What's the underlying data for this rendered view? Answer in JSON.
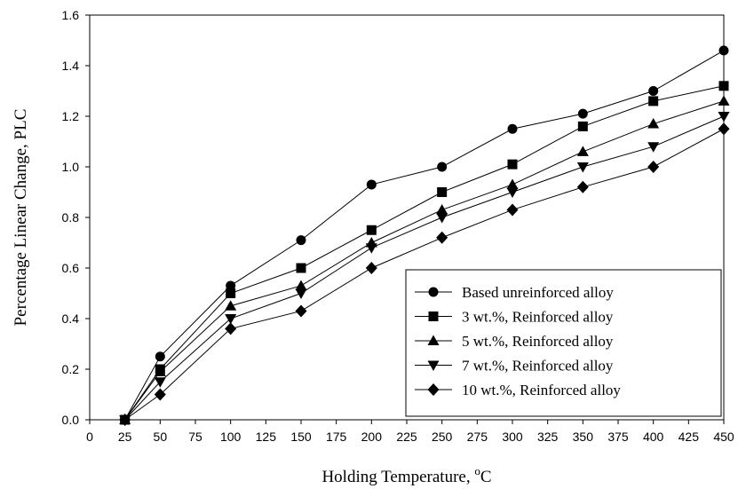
{
  "chart_data": {
    "type": "line",
    "xlabel": "Holding Temperature, ",
    "xlabel_unit": "C",
    "xlabel_degree": "o",
    "ylabel": "Percentage Linear Change, PLC",
    "xlim": [
      0,
      450
    ],
    "ylim": [
      0,
      1.6
    ],
    "x_ticks": [
      0,
      25,
      50,
      75,
      100,
      125,
      150,
      175,
      200,
      225,
      250,
      275,
      300,
      325,
      350,
      375,
      400,
      425,
      450
    ],
    "y_ticks": [
      "0.0",
      "0.2",
      "0.4",
      "0.6",
      "0.8",
      "1.0",
      "1.2",
      "1.4",
      "1.6"
    ],
    "grid": false,
    "legend_position": "bottom-right",
    "x": [
      25,
      50,
      100,
      150,
      200,
      250,
      300,
      350,
      400,
      450
    ],
    "series": [
      {
        "name": "Based unreinforced alloy",
        "marker": "circle",
        "values": [
          0,
          0.25,
          0.53,
          0.71,
          0.93,
          1.0,
          1.15,
          1.21,
          1.3,
          1.46
        ]
      },
      {
        "name": "3 wt.%, Reinforced alloy",
        "marker": "square",
        "values": [
          0,
          0.2,
          0.5,
          0.6,
          0.75,
          0.9,
          1.01,
          1.16,
          1.26,
          1.32
        ]
      },
      {
        "name": "5 wt.%, Reinforced alloy",
        "marker": "triangle-up",
        "values": [
          0,
          0.19,
          0.45,
          0.53,
          0.7,
          0.83,
          0.93,
          1.06,
          1.17,
          1.26
        ]
      },
      {
        "name": "7 wt.%, Reinforced alloy",
        "marker": "triangle-down",
        "values": [
          0,
          0.15,
          0.4,
          0.5,
          0.68,
          0.8,
          0.9,
          1.0,
          1.08,
          1.2
        ]
      },
      {
        "name": "10 wt.%, Reinforced alloy",
        "marker": "diamond",
        "values": [
          0,
          0.1,
          0.36,
          0.43,
          0.6,
          0.72,
          0.83,
          0.92,
          1.0,
          1.15
        ]
      }
    ],
    "colors": {
      "line": "#000000",
      "marker": "#000000",
      "frame": "#000000",
      "background": "#ffffff"
    }
  }
}
